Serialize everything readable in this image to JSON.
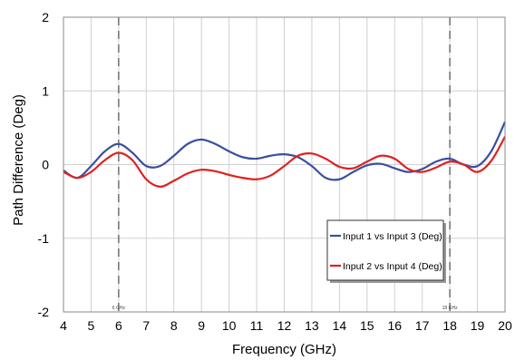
{
  "chart_data": {
    "type": "line",
    "title": "",
    "xlabel": "Frequency (GHz)",
    "ylabel": "Path Difference (Deg)",
    "xlim": [
      4,
      20
    ],
    "ylim": [
      -2,
      2
    ],
    "xticks": [
      "4",
      "5",
      "6",
      "7",
      "8",
      "9",
      "10",
      "11",
      "12",
      "13",
      "14",
      "15",
      "16",
      "17",
      "18",
      "19",
      "20"
    ],
    "yticks": [
      "2",
      "1",
      "0",
      "-1",
      "-2"
    ],
    "grid": true,
    "legend_position": "lower-right",
    "markers": [
      {
        "x": 6,
        "label": "6 GHz"
      },
      {
        "x": 18,
        "label": "18 GHz"
      }
    ],
    "series": [
      {
        "name": "Input 1 vs Input 3 (Deg)",
        "color": "#3a4fa0",
        "x": [
          4,
          4.5,
          5,
          5.5,
          6,
          6.5,
          7,
          7.5,
          8,
          8.5,
          9,
          9.5,
          10,
          10.5,
          11,
          11.5,
          12,
          12.5,
          13,
          13.5,
          14,
          14.5,
          15,
          15.5,
          16,
          16.5,
          17,
          17.5,
          18,
          18.5,
          19,
          19.5,
          20
        ],
        "values": [
          -0.08,
          -0.18,
          -0.02,
          0.18,
          0.28,
          0.16,
          -0.02,
          -0.02,
          0.12,
          0.28,
          0.34,
          0.28,
          0.18,
          0.1,
          0.08,
          0.12,
          0.14,
          0.1,
          -0.02,
          -0.18,
          -0.2,
          -0.1,
          -0.01,
          0.01,
          -0.05,
          -0.1,
          -0.06,
          0.04,
          0.08,
          0.0,
          -0.02,
          0.18,
          0.58
        ]
      },
      {
        "name": "Input 2 vs Input 4 (Deg)",
        "color": "#e02020",
        "x": [
          4,
          4.5,
          5,
          5.5,
          6,
          6.5,
          7,
          7.5,
          8,
          8.5,
          9,
          9.5,
          10,
          10.5,
          11,
          11.5,
          12,
          12.5,
          13,
          13.5,
          14,
          14.5,
          15,
          15.5,
          16,
          16.5,
          17,
          17.5,
          18,
          18.5,
          19,
          19.5,
          20
        ],
        "values": [
          -0.1,
          -0.18,
          -0.1,
          0.06,
          0.16,
          0.06,
          -0.2,
          -0.3,
          -0.22,
          -0.12,
          -0.07,
          -0.09,
          -0.14,
          -0.18,
          -0.2,
          -0.15,
          -0.02,
          0.12,
          0.15,
          0.08,
          -0.03,
          -0.05,
          0.04,
          0.12,
          0.08,
          -0.06,
          -0.1,
          -0.04,
          0.04,
          0.0,
          -0.1,
          0.05,
          0.38
        ]
      }
    ]
  }
}
